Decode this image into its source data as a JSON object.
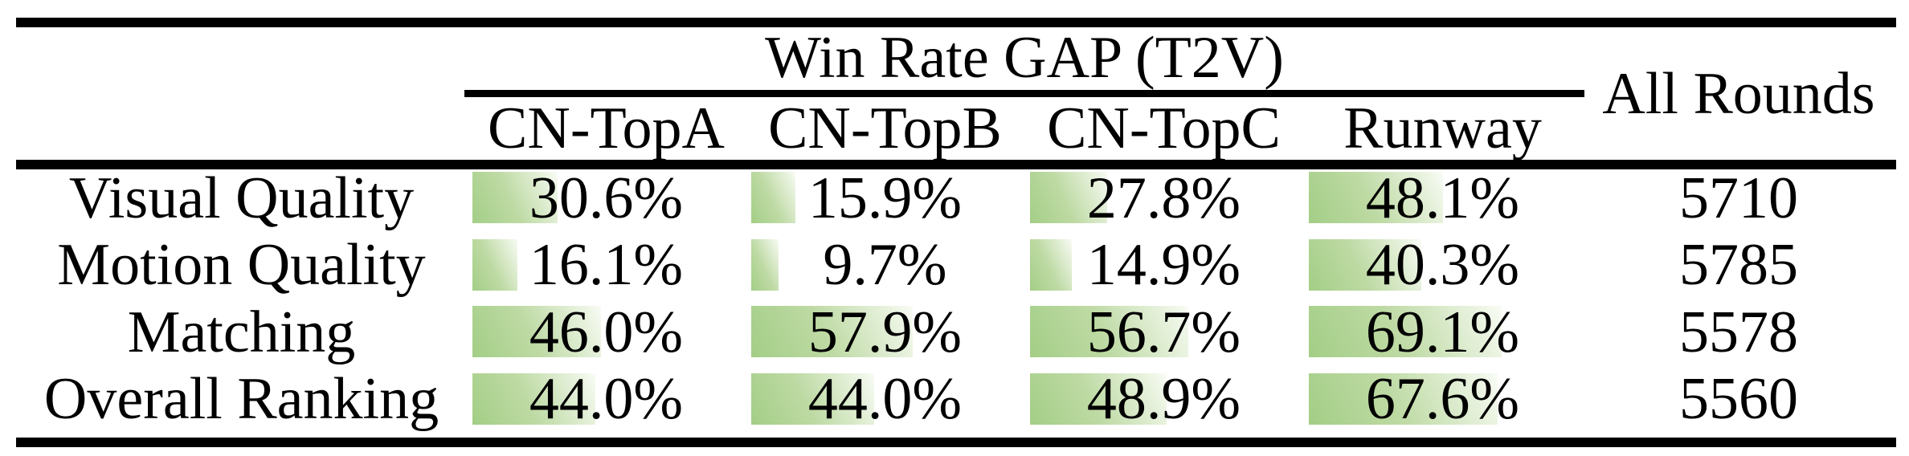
{
  "table": {
    "group_header": "Win Rate GAP (T2V)",
    "all_rounds_header": "All Rounds",
    "columns": [
      "CN-TopA",
      "CN-TopB",
      "CN-TopC",
      "Runway"
    ],
    "rows": [
      {
        "label": "Visual Quality",
        "values": [
          "30.6%",
          "15.9%",
          "27.8%",
          "48.1%"
        ],
        "all_rounds": "5710"
      },
      {
        "label": "Motion Quality",
        "values": [
          "16.1%",
          "9.7%",
          "14.9%",
          "40.3%"
        ],
        "all_rounds": "5785"
      },
      {
        "label": "Matching",
        "values": [
          "46.0%",
          "57.9%",
          "56.7%",
          "69.1%"
        ],
        "all_rounds": "5578"
      },
      {
        "label": "Overall Ranking",
        "values": [
          "44.0%",
          "44.0%",
          "48.9%",
          "67.6%"
        ],
        "all_rounds": "5560"
      }
    ],
    "bar_color": "#a3ce86"
  },
  "chart_data": {
    "type": "table",
    "title": "Win Rate GAP (T2V)",
    "columns": [
      "CN-TopA",
      "CN-TopB",
      "CN-TopC",
      "Runway",
      "All Rounds"
    ],
    "row_labels": [
      "Visual Quality",
      "Motion Quality",
      "Matching",
      "Overall Ranking"
    ],
    "series": [
      {
        "name": "CN-TopA",
        "values": [
          30.6,
          16.1,
          46.0,
          44.0
        ]
      },
      {
        "name": "CN-TopB",
        "values": [
          15.9,
          9.7,
          57.9,
          44.0
        ]
      },
      {
        "name": "CN-TopC",
        "values": [
          27.8,
          14.9,
          56.7,
          48.9
        ]
      },
      {
        "name": "Runway",
        "values": [
          48.1,
          40.3,
          69.1,
          67.6
        ]
      }
    ],
    "all_rounds": [
      5710,
      5785,
      5578,
      5560
    ],
    "unit": "%",
    "bar_style": "in-cell horizontal bar, width proportional to percentage (100% = column width), green-to-white gradient",
    "bar_range": [
      0,
      100
    ]
  }
}
